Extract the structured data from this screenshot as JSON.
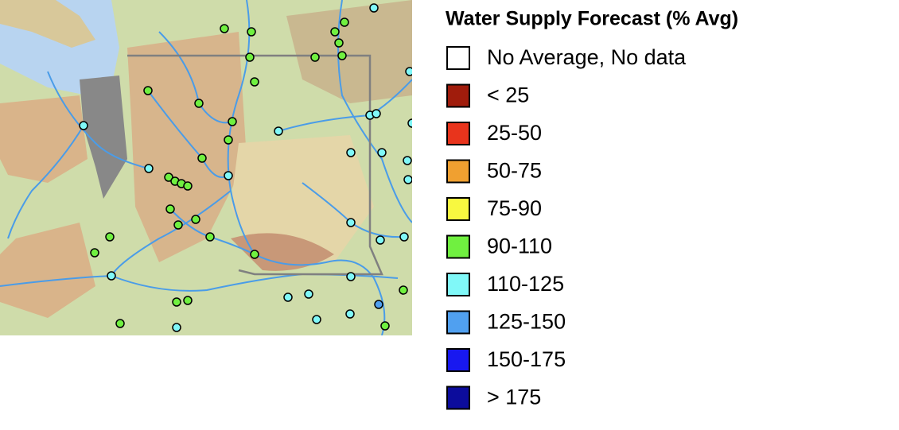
{
  "legend": {
    "title": "Water Supply Forecast (% Avg)",
    "items": [
      {
        "label": "No Average, No data",
        "color": "#ffffff"
      },
      {
        "label": "< 25",
        "color": "#a01c0c"
      },
      {
        "label": "25-50",
        "color": "#e8341c"
      },
      {
        "label": "50-75",
        "color": "#f0a030"
      },
      {
        "label": "75-90",
        "color": "#f8f840"
      },
      {
        "label": "90-110",
        "color": "#70f040"
      },
      {
        "label": "110-125",
        "color": "#80f8f8"
      },
      {
        "label": "125-150",
        "color": "#50a0f0"
      },
      {
        "label": "150-175",
        "color": "#1818f0"
      },
      {
        "label": "> 175",
        "color": "#0c0c9c"
      }
    ]
  }
}
